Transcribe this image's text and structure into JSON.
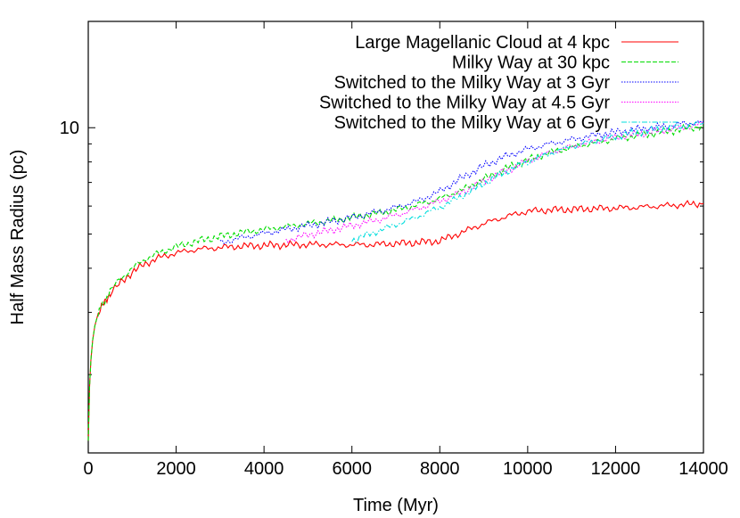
{
  "chart_data": {
    "type": "line",
    "title": "",
    "xlabel": "Time (Myr)",
    "ylabel": "Half Mass Radius (pc)",
    "xlim": [
      0,
      14000
    ],
    "ylim": [
      1.2,
      20
    ],
    "yscale": "log",
    "grid": false,
    "legend_position": "top-right",
    "x_ticks": [
      0,
      2000,
      4000,
      6000,
      8000,
      10000,
      12000,
      14000
    ],
    "x_tick_labels": [
      "0",
      "2000",
      "4000",
      "6000",
      "8000",
      "10000",
      "12000",
      "14000"
    ],
    "y_ticks": [
      10
    ],
    "y_tick_labels": [
      "10"
    ],
    "series": [
      {
        "name": "Large Magellanic Cloud at 4 kpc",
        "color": "#ff0000",
        "style": "solid",
        "x": [
          0,
          30,
          60,
          100,
          150,
          200,
          300,
          400,
          500,
          700,
          1000,
          1300,
          1600,
          2000,
          2500,
          3000,
          3500,
          4000,
          4500,
          5000,
          5500,
          6000,
          6500,
          7000,
          7500,
          8000,
          8500,
          9000,
          9500,
          10000,
          10500,
          11000,
          11500,
          12000,
          12500,
          13000,
          13500,
          14000
        ],
        "y": [
          1.3,
          1.85,
          2.2,
          2.5,
          2.75,
          2.9,
          3.1,
          3.25,
          3.4,
          3.6,
          3.9,
          4.12,
          4.28,
          4.42,
          4.53,
          4.58,
          4.62,
          4.64,
          4.66,
          4.67,
          4.67,
          4.66,
          4.67,
          4.7,
          4.73,
          4.78,
          5.05,
          5.35,
          5.6,
          5.8,
          5.85,
          5.87,
          5.9,
          5.92,
          5.95,
          6.0,
          6.05,
          6.1
        ]
      },
      {
        "name": "Milky Way at 30 kpc",
        "color": "#00dd00",
        "style": "dashed",
        "x": [
          0,
          30,
          60,
          100,
          150,
          200,
          300,
          400,
          500,
          700,
          1000,
          1300,
          1600,
          2000,
          2500,
          3000,
          3500,
          4000,
          4500,
          5000,
          5500,
          6000,
          6500,
          7000,
          7500,
          8000,
          8500,
          9000,
          9500,
          10000,
          10500,
          11000,
          11500,
          12000,
          12500,
          13000,
          13500,
          14000
        ],
        "y": [
          1.3,
          1.85,
          2.2,
          2.5,
          2.75,
          2.9,
          3.12,
          3.28,
          3.45,
          3.7,
          4.0,
          4.25,
          4.42,
          4.6,
          4.78,
          4.92,
          5.05,
          5.15,
          5.25,
          5.35,
          5.45,
          5.57,
          5.7,
          5.85,
          6.05,
          6.3,
          6.65,
          7.15,
          7.65,
          8.1,
          8.5,
          8.8,
          9.05,
          9.3,
          9.5,
          9.7,
          9.9,
          10.1
        ]
      },
      {
        "name": "Switched to the Milky Way at 3 Gyr",
        "color": "#0000ff",
        "style": "dotted",
        "x": [
          3000,
          3500,
          4000,
          4500,
          5000,
          5500,
          6000,
          6500,
          7000,
          7500,
          8000,
          8500,
          9000,
          9500,
          10000,
          10500,
          11000,
          11500,
          12000,
          12500,
          13000,
          13500,
          14000
        ],
        "y": [
          4.72,
          4.88,
          5.02,
          5.15,
          5.28,
          5.42,
          5.57,
          5.75,
          5.95,
          6.2,
          6.6,
          7.2,
          7.8,
          8.3,
          8.7,
          9.0,
          9.25,
          9.5,
          9.7,
          9.9,
          10.05,
          10.25,
          10.4
        ]
      },
      {
        "name": "Switched to the Milky Way at 4.5 Gyr",
        "color": "#ff00ff",
        "style": "dotted",
        "x": [
          4500,
          5000,
          5500,
          6000,
          6500,
          7000,
          7500,
          8000,
          8500,
          9000,
          9500,
          10000,
          10500,
          11000,
          11500,
          12000,
          12500,
          13000,
          13500,
          14000
        ],
        "y": [
          4.8,
          4.97,
          5.12,
          5.28,
          5.45,
          5.65,
          5.9,
          6.2,
          6.55,
          7.05,
          7.55,
          8.05,
          8.5,
          8.85,
          9.15,
          9.4,
          9.6,
          9.8,
          10.0,
          10.25
        ]
      },
      {
        "name": "Switched to the Milky Way at 6 Gyr",
        "color": "#00dddd",
        "style": "dash-dot",
        "x": [
          6000,
          6500,
          7000,
          7500,
          8000,
          8500,
          9000,
          9500,
          10000,
          10500,
          11000,
          11500,
          12000,
          12500,
          13000,
          13500,
          14000
        ],
        "y": [
          4.8,
          5.05,
          5.32,
          5.6,
          5.95,
          6.4,
          6.95,
          7.5,
          8.0,
          8.45,
          8.85,
          9.15,
          9.45,
          9.7,
          9.9,
          10.1,
          10.3
        ]
      }
    ]
  }
}
